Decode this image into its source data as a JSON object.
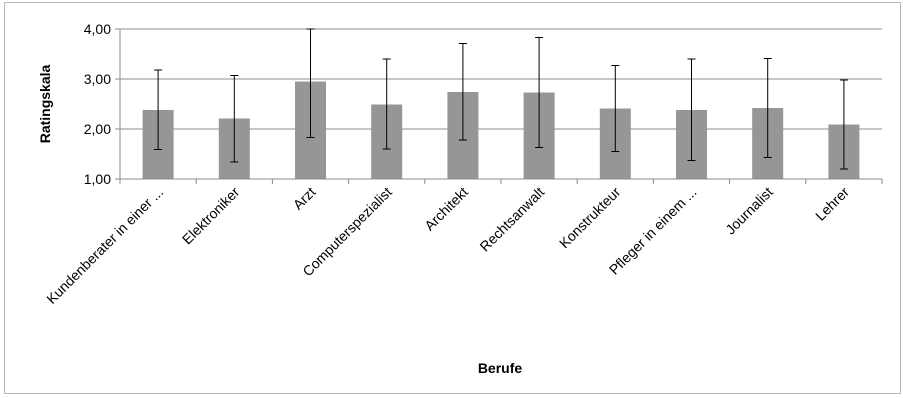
{
  "chart_data": {
    "type": "bar",
    "title": "",
    "xlabel": "Berufe",
    "ylabel": "Ratingskala",
    "ylim": [
      1.0,
      4.0
    ],
    "yticks": [
      "1,00",
      "2,00",
      "3,00",
      "4,00"
    ],
    "ytick_values": [
      1.0,
      2.0,
      3.0,
      4.0
    ],
    "grid": "horizontal",
    "legend": "none",
    "categories": [
      "Kundenberater in einer ...",
      "Elektroniker",
      "Arzt",
      "Computerspezialist",
      "Architekt",
      "Rechtsanwalt",
      "Konstrukteur",
      "Pfleger in einem ...",
      "Journalist",
      "Lehrer"
    ],
    "values": [
      2.38,
      2.21,
      2.95,
      2.49,
      2.74,
      2.73,
      2.41,
      2.38,
      2.42,
      2.09
    ],
    "error_bars": {
      "upper": [
        3.18,
        3.07,
        4.0,
        3.4,
        3.71,
        3.83,
        3.27,
        3.4,
        3.41,
        2.98
      ],
      "lower": [
        1.59,
        1.34,
        1.83,
        1.6,
        1.78,
        1.63,
        1.55,
        1.37,
        1.43,
        1.2
      ]
    },
    "colors": {
      "bar": "#969696",
      "grid": "#8c8c8c",
      "axis": "#8c8c8c",
      "error": "#000000"
    }
  }
}
